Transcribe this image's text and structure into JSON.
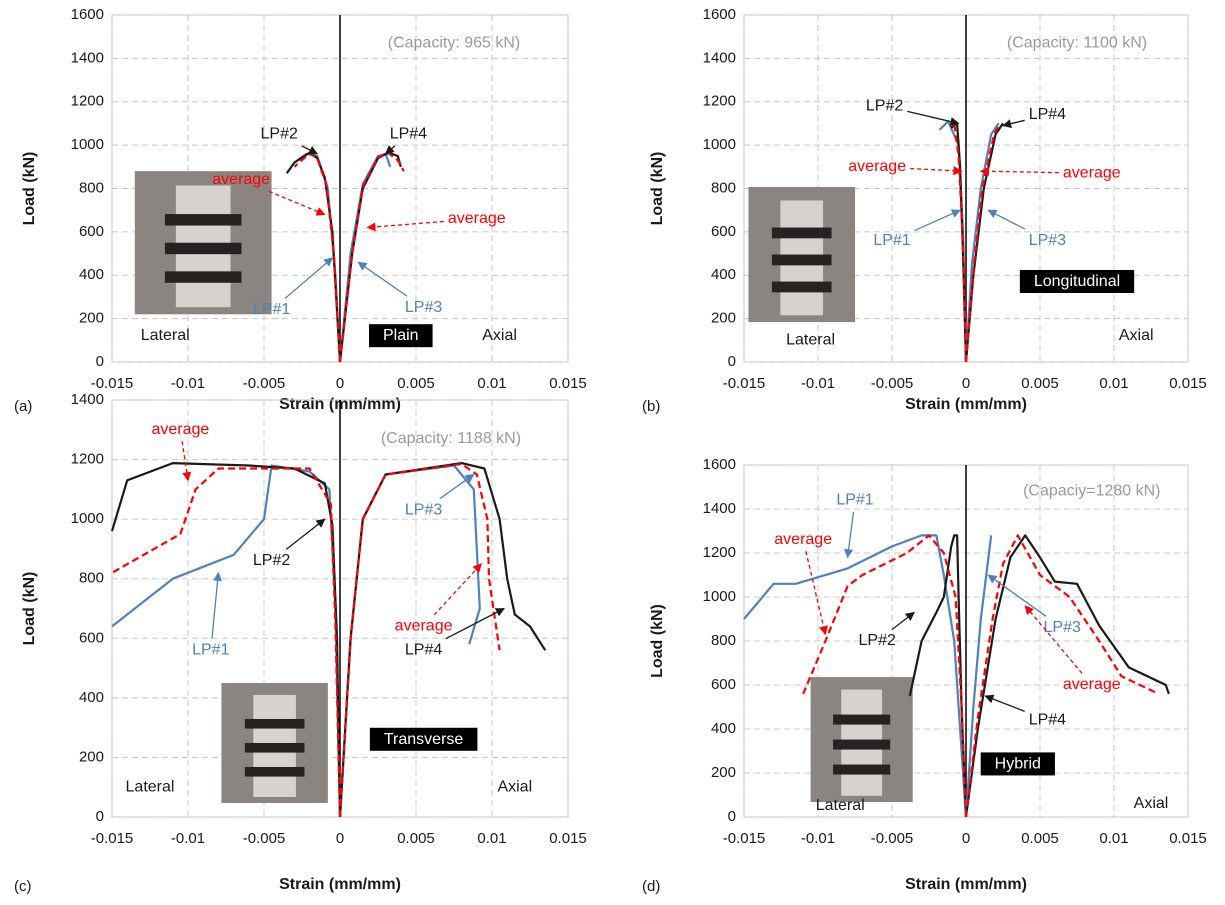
{
  "chart_data": [
    {
      "type": "line",
      "panel_label": "(a)",
      "capacity_note": "(Capacity: 965 kN)",
      "xlabel": "Strain (mm/mm)",
      "ylabel": "Load (kN)",
      "xlim": [
        -0.015,
        0.015
      ],
      "xticks": [
        -0.015,
        -0.01,
        -0.005,
        0,
        0.005,
        0.01,
        0.015
      ],
      "ylim": [
        0,
        1600
      ],
      "yticks": [
        0,
        200,
        400,
        600,
        800,
        1000,
        1200,
        1400,
        1600
      ],
      "grid": true,
      "annotations": [
        "Lateral",
        "Plain",
        "Axial"
      ],
      "series": [
        {
          "name": "LP#1",
          "color": "#4f81bd",
          "line_style": "solid",
          "x": [
            0,
            -0.0003,
            -0.0008,
            -0.0015,
            -0.0022,
            -0.0028
          ],
          "values": [
            0,
            400,
            800,
            950,
            960,
            930
          ]
        },
        {
          "name": "LP#2",
          "color": "#1a1a1a",
          "line_style": "solid",
          "x": [
            0,
            -0.0005,
            -0.001,
            -0.0015,
            -0.002,
            -0.003,
            -0.0035
          ],
          "values": [
            0,
            600,
            850,
            940,
            965,
            920,
            870
          ]
        },
        {
          "name": "average",
          "color": "#ff0000",
          "line_style": "dashed",
          "x": [
            0,
            -0.0004,
            -0.0009,
            -0.0015,
            -0.002,
            -0.003
          ],
          "values": [
            0,
            500,
            820,
            940,
            962,
            900
          ]
        },
        {
          "name": "LP#3",
          "color": "#4f81bd",
          "line_style": "solid",
          "x": [
            0,
            0.0007,
            0.0015,
            0.0025,
            0.003,
            0.0033
          ],
          "values": [
            0,
            500,
            820,
            950,
            960,
            900
          ]
        },
        {
          "name": "LP#4",
          "color": "#1a1a1a",
          "line_style": "solid",
          "x": [
            0,
            0.0008,
            0.0015,
            0.0025,
            0.0032,
            0.0038,
            0.004
          ],
          "values": [
            0,
            500,
            800,
            940,
            965,
            950,
            900
          ]
        },
        {
          "name": "average",
          "color": "#ff0000",
          "line_style": "dashed",
          "x": [
            0,
            0.0008,
            0.0015,
            0.0025,
            0.0032,
            0.0038,
            0.0042
          ],
          "values": [
            0,
            500,
            810,
            945,
            963,
            930,
            880
          ]
        }
      ]
    },
    {
      "type": "line",
      "panel_label": "(b)",
      "capacity_note": "(Capacity: 1100 kN)",
      "xlabel": "Strain (mm/mm)",
      "ylabel": "Load (kN)",
      "xlim": [
        -0.015,
        0.015
      ],
      "xticks": [
        -0.015,
        -0.01,
        -0.005,
        0,
        0.005,
        0.01,
        0.015
      ],
      "ylim": [
        0,
        1600
      ],
      "yticks": [
        0,
        200,
        400,
        600,
        800,
        1000,
        1200,
        1400,
        1600
      ],
      "grid": true,
      "annotations": [
        "Lateral",
        "Longitudinal",
        "Axial"
      ],
      "series": [
        {
          "name": "LP#1",
          "color": "#4f81bd",
          "line_style": "solid",
          "x": [
            0,
            -0.0002,
            -0.0005,
            -0.0012,
            -0.0018
          ],
          "values": [
            0,
            600,
            1000,
            1110,
            1070
          ]
        },
        {
          "name": "LP#2",
          "color": "#1a1a1a",
          "line_style": "solid",
          "x": [
            0,
            -0.0002,
            -0.0004,
            -0.0006,
            -0.001
          ],
          "values": [
            0,
            500,
            900,
            1100,
            1080
          ]
        },
        {
          "name": "average",
          "color": "#ff0000",
          "line_style": "dashed",
          "x": [
            0,
            -0.0002,
            -0.0005,
            -0.0008
          ],
          "values": [
            0,
            550,
            950,
            1100
          ]
        },
        {
          "name": "LP#3",
          "color": "#4f81bd",
          "line_style": "solid",
          "x": [
            0,
            0.0004,
            0.001,
            0.0017,
            0.0022
          ],
          "values": [
            0,
            450,
            800,
            1050,
            1100
          ]
        },
        {
          "name": "LP#4",
          "color": "#1a1a1a",
          "line_style": "solid",
          "x": [
            0,
            0.0005,
            0.0012,
            0.002,
            0.0025
          ],
          "values": [
            0,
            400,
            800,
            1050,
            1100
          ]
        },
        {
          "name": "average",
          "color": "#ff0000",
          "line_style": "dashed",
          "x": [
            0,
            0.0005,
            0.0011,
            0.0019,
            0.0023
          ],
          "values": [
            0,
            420,
            800,
            1050,
            1100
          ]
        }
      ]
    },
    {
      "type": "line",
      "panel_label": "(c)",
      "capacity_note": "(Capacity: 1188 kN)",
      "xlabel": "Strain (mm/mm)",
      "ylabel": "Load (kN)",
      "xlim": [
        -0.015,
        0.015
      ],
      "xticks": [
        -0.015,
        -0.01,
        -0.005,
        0,
        0.005,
        0.01,
        0.015
      ],
      "ylim": [
        0,
        1400
      ],
      "yticks": [
        0,
        200,
        400,
        600,
        800,
        1000,
        1200,
        1400
      ],
      "grid": true,
      "annotations": [
        "Lateral",
        "Transverse",
        "Axial"
      ],
      "series": [
        {
          "name": "LP#1",
          "color": "#4f81bd",
          "line_style": "solid",
          "x": [
            0,
            -0.0003,
            -0.0007,
            -0.002,
            -0.0045,
            -0.005,
            -0.007,
            -0.011,
            -0.015
          ],
          "values": [
            0,
            700,
            1100,
            1160,
            1180,
            1000,
            880,
            800,
            640
          ]
        },
        {
          "name": "LP#2",
          "color": "#1a1a1a",
          "line_style": "solid",
          "x": [
            0,
            -0.0002,
            -0.0005,
            -0.001,
            -0.003,
            -0.006,
            -0.011,
            -0.014,
            -0.015
          ],
          "values": [
            0,
            600,
            980,
            1120,
            1170,
            1180,
            1188,
            1130,
            960
          ]
        },
        {
          "name": "average",
          "color": "#ff0000",
          "line_style": "dashed",
          "x": [
            0,
            -0.0003,
            -0.0006,
            -0.002,
            -0.008,
            -0.0095,
            -0.0105,
            -0.015
          ],
          "values": [
            0,
            650,
            1050,
            1170,
            1170,
            1100,
            950,
            820
          ]
        },
        {
          "name": "LP#3",
          "color": "#4f81bd",
          "line_style": "solid",
          "x": [
            0,
            0.0007,
            0.0015,
            0.003,
            0.0075,
            0.0088,
            0.009,
            0.0092,
            0.0085
          ],
          "values": [
            0,
            600,
            1000,
            1150,
            1180,
            1100,
            900,
            700,
            580
          ]
        },
        {
          "name": "LP#4",
          "color": "#1a1a1a",
          "line_style": "solid",
          "x": [
            0,
            0.0007,
            0.0015,
            0.003,
            0.008,
            0.0095,
            0.0105,
            0.011,
            0.0115,
            0.0125,
            0.0135
          ],
          "values": [
            0,
            600,
            1000,
            1150,
            1188,
            1170,
            1000,
            800,
            680,
            640,
            560
          ]
        },
        {
          "name": "average",
          "color": "#ff0000",
          "line_style": "dashed",
          "x": [
            0,
            0.0007,
            0.0015,
            0.003,
            0.008,
            0.009,
            0.0097,
            0.0098,
            0.0105
          ],
          "values": [
            0,
            600,
            1000,
            1150,
            1185,
            1150,
            1000,
            800,
            560
          ]
        }
      ]
    },
    {
      "type": "line",
      "panel_label": "(d)",
      "capacity_note": "(Capaciy=1280 kN)",
      "xlabel": "Strain (mm/mm)",
      "ylabel": "Load (kN)",
      "xlim": [
        -0.015,
        0.015
      ],
      "xticks": [
        -0.015,
        -0.01,
        -0.005,
        0,
        0.005,
        0.01,
        0.015
      ],
      "ylim": [
        0,
        1600
      ],
      "yticks": [
        0,
        200,
        400,
        600,
        800,
        1000,
        1200,
        1400,
        1600
      ],
      "grid": true,
      "annotations": [
        "Lateral",
        "Hybrid",
        "Axial"
      ],
      "series": [
        {
          "name": "LP#1",
          "color": "#4f81bd",
          "line_style": "solid",
          "x": [
            0,
            -0.0004,
            -0.0008,
            -0.0015,
            -0.002,
            -0.003,
            -0.005,
            -0.008,
            -0.0115,
            -0.013,
            -0.015
          ],
          "values": [
            0,
            400,
            800,
            1100,
            1280,
            1280,
            1230,
            1130,
            1060,
            1060,
            900
          ]
        },
        {
          "name": "LP#2",
          "color": "#1a1a1a",
          "line_style": "solid",
          "x": [
            0,
            -0.0003,
            -0.0005,
            -0.0006,
            -0.0008,
            -0.001,
            -0.0015,
            -0.002,
            -0.003,
            -0.0038
          ],
          "values": [
            0,
            500,
            1000,
            1280,
            1280,
            1230,
            1000,
            930,
            800,
            550
          ]
        },
        {
          "name": "average",
          "color": "#ff0000",
          "line_style": "dashed",
          "x": [
            0,
            -0.0003,
            -0.0007,
            -0.0015,
            -0.0025,
            -0.004,
            -0.007,
            -0.008,
            -0.0095,
            -0.011
          ],
          "values": [
            0,
            500,
            1000,
            1200,
            1280,
            1200,
            1100,
            1050,
            800,
            560
          ]
        },
        {
          "name": "LP#3",
          "color": "#4f81bd",
          "line_style": "solid",
          "x": [
            0,
            0.0005,
            0.001,
            0.0017
          ],
          "values": [
            0,
            500,
            900,
            1280
          ]
        },
        {
          "name": "LP#4",
          "color": "#1a1a1a",
          "line_style": "solid",
          "x": [
            0,
            0.0008,
            0.002,
            0.003,
            0.004,
            0.005,
            0.006,
            0.0075,
            0.009,
            0.011,
            0.0135,
            0.0137
          ],
          "values": [
            0,
            400,
            900,
            1180,
            1280,
            1180,
            1070,
            1060,
            870,
            680,
            600,
            560
          ]
        },
        {
          "name": "average",
          "color": "#ff0000",
          "line_style": "dashed",
          "x": [
            0,
            0.0008,
            0.0018,
            0.0025,
            0.0035,
            0.005,
            0.007,
            0.009,
            0.0105,
            0.013
          ],
          "values": [
            0,
            450,
            900,
            1150,
            1280,
            1100,
            1000,
            800,
            640,
            560
          ]
        }
      ]
    }
  ]
}
